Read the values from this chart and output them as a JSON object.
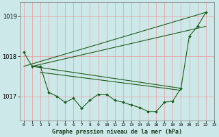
{
  "bg_color": "#cce8e8",
  "grid_color": "#ee9999",
  "line_color": "#1a5c1a",
  "marker_color": "#1a5c1a",
  "title": "Graphe pression niveau de la mer (hPa)",
  "xlim": [
    -0.5,
    23
  ],
  "ylim": [
    1016.4,
    1019.35
  ],
  "yticks": [
    1017,
    1018,
    1019
  ],
  "xtick_labels": [
    "0",
    "1",
    "2",
    "3",
    "4",
    "5",
    "6",
    "7",
    "8",
    "9",
    "10",
    "11",
    "12",
    "13",
    "14",
    "15",
    "16",
    "17",
    "18",
    "19",
    "20",
    "21",
    "22",
    "23"
  ],
  "line_main": {
    "x": [
      0,
      1,
      2,
      3,
      4,
      5,
      6,
      7,
      8,
      9,
      10,
      11,
      12,
      13,
      14,
      15,
      16,
      17,
      18,
      19,
      20,
      21,
      22
    ],
    "y": [
      1018.1,
      1017.75,
      1017.75,
      1017.1,
      1017.0,
      1016.85,
      1016.95,
      1016.7,
      1016.9,
      1017.05,
      1017.05,
      1016.9,
      1016.85,
      1016.78,
      1016.72,
      1016.62,
      1016.62,
      1016.85,
      1016.88,
      1017.2,
      1018.5,
      1018.75,
      1019.1
    ]
  },
  "line_fan1": {
    "x": [
      1,
      19
    ],
    "y": [
      1017.75,
      1017.2
    ]
  },
  "line_fan2": {
    "x": [
      1,
      19
    ],
    "y": [
      1017.75,
      1017.15
    ]
  },
  "line_fan3": {
    "x": [
      2,
      19
    ],
    "y": [
      1017.6,
      1017.2
    ]
  },
  "line_fan4": {
    "x": [
      3,
      19
    ],
    "y": [
      1017.2,
      1017.2
    ]
  }
}
